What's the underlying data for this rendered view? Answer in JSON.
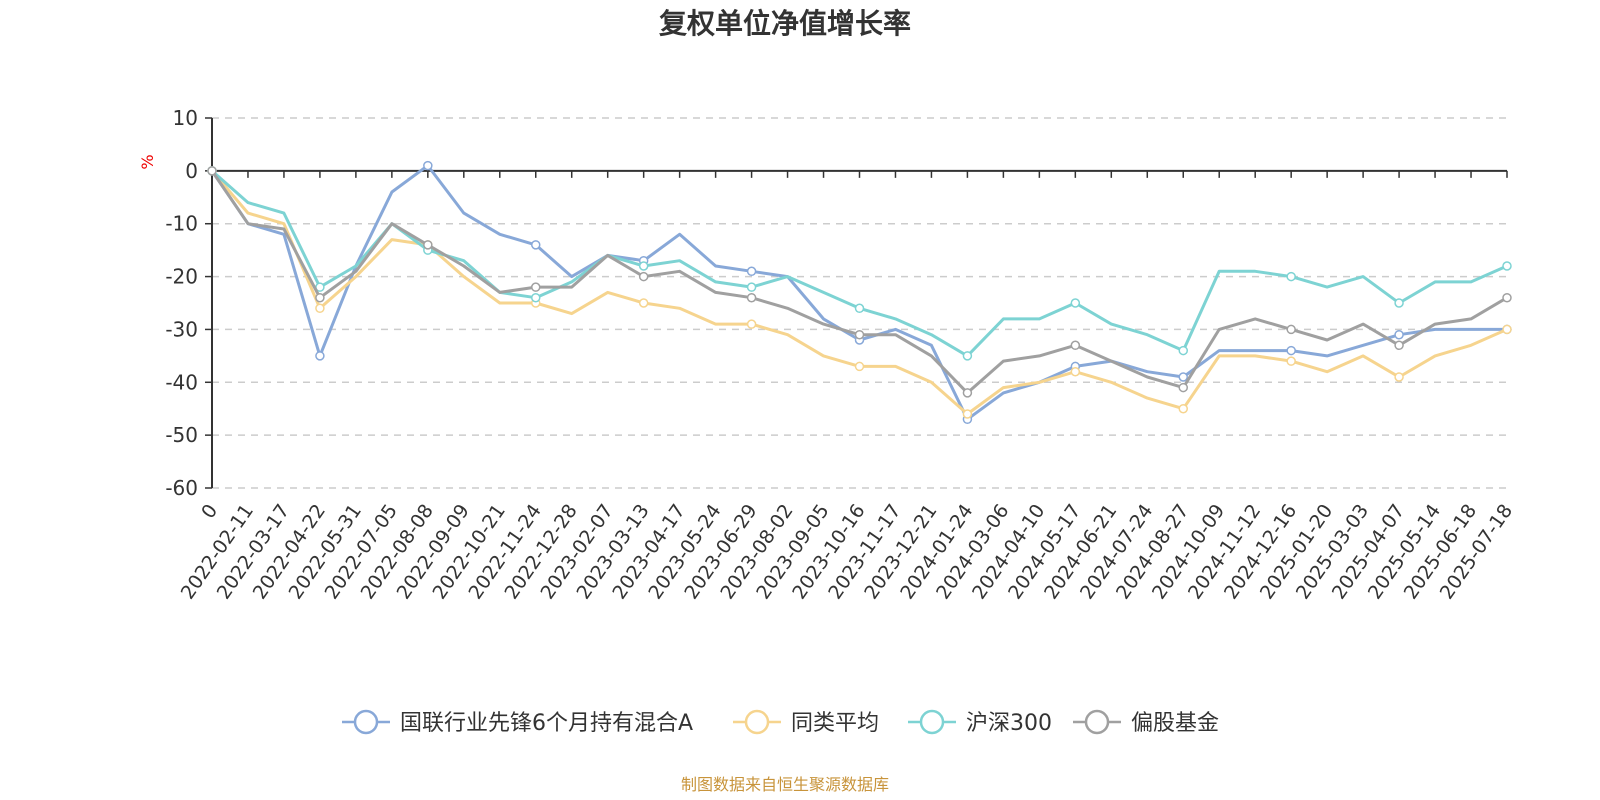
{
  "chart_data": {
    "type": "line",
    "title": "复权单位净值增长率",
    "ylabel": "%",
    "ylim": [
      -60,
      10
    ],
    "yticks": [
      10,
      0,
      -10,
      -20,
      -30,
      -40,
      -50,
      -60
    ],
    "grid": true,
    "legend_position": "bottom",
    "source": "制图数据来自恒生聚源数据库",
    "x": [
      "0",
      "2022-02-11",
      "2022-03-17",
      "2022-04-22",
      "2022-05-31",
      "2022-07-05",
      "2022-08-08",
      "2022-09-09",
      "2022-10-21",
      "2022-11-24",
      "2022-12-28",
      "2023-02-07",
      "2023-03-13",
      "2023-04-17",
      "2023-05-24",
      "2023-06-29",
      "2023-08-02",
      "2023-09-05",
      "2023-10-16",
      "2023-11-17",
      "2023-12-21",
      "2024-01-24",
      "2024-03-06",
      "2024-04-10",
      "2024-05-17",
      "2024-06-21",
      "2024-07-24",
      "2024-08-27",
      "2024-10-09",
      "2024-11-12",
      "2024-12-16",
      "2025-01-20",
      "2025-03-03",
      "2025-04-07",
      "2025-05-14",
      "2025-06-18",
      "2025-07-18"
    ],
    "series": [
      {
        "name": "国联行业先锋6个月持有混合A",
        "color": "#88a8d8",
        "values": [
          0,
          -10,
          -12,
          -35,
          -18,
          -4,
          1,
          -8,
          -12,
          -14,
          -20,
          -16,
          -17,
          -12,
          -18,
          -19,
          -20,
          -28,
          -32,
          -30,
          -33,
          -47,
          -42,
          -40,
          -37,
          -36,
          -38,
          -39,
          -34,
          -34,
          -34,
          -35,
          -33,
          -31,
          -30,
          -30,
          -30
        ]
      },
      {
        "name": "同类平均",
        "color": "#f6d48e",
        "values": [
          0,
          -8,
          -10,
          -26,
          -20,
          -13,
          -14,
          -20,
          -25,
          -25,
          -27,
          -23,
          -25,
          -26,
          -29,
          -29,
          -31,
          -35,
          -37,
          -37,
          -40,
          -46,
          -41,
          -40,
          -38,
          -40,
          -43,
          -45,
          -35,
          -35,
          -36,
          -38,
          -35,
          -39,
          -35,
          -33,
          -30
        ]
      },
      {
        "name": "沪深300",
        "color": "#7dd3d3",
        "values": [
          0,
          -6,
          -8,
          -22,
          -18,
          -10,
          -15,
          -17,
          -23,
          -24,
          -21,
          -16,
          -18,
          -17,
          -21,
          -22,
          -20,
          -23,
          -26,
          -28,
          -31,
          -35,
          -28,
          -28,
          -25,
          -29,
          -31,
          -34,
          -19,
          -19,
          -20,
          -22,
          -20,
          -25,
          -21,
          -21,
          -18
        ]
      },
      {
        "name": "偏股基金",
        "color": "#a0a0a0",
        "values": [
          0,
          -10,
          -11,
          -24,
          -19,
          -10,
          -14,
          -18,
          -23,
          -22,
          -22,
          -16,
          -20,
          -19,
          -23,
          -24,
          -26,
          -29,
          -31,
          -31,
          -35,
          -42,
          -36,
          -35,
          -33,
          -36,
          -39,
          -41,
          -30,
          -28,
          -30,
          -32,
          -29,
          -33,
          -29,
          -28,
          -24
        ]
      }
    ]
  }
}
